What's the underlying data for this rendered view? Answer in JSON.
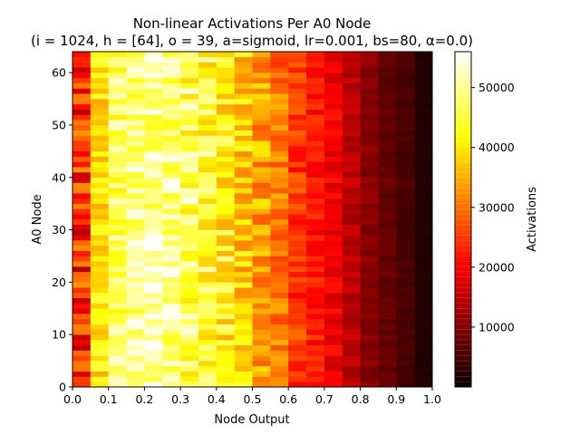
{
  "chart_data": {
    "type": "heatmap",
    "title": "Non-linear Activations Per A0 Node",
    "subtitle": "(i = 1024, h = [64], o = 39, a=sigmoid, lr=0.001, bs=80, α=0.0)",
    "xlabel": "Node Output",
    "ylabel": "A0 Node",
    "colorbar_label": "Activations",
    "colormap": "hot",
    "x_bins": [
      0.0,
      0.05,
      0.1,
      0.15,
      0.2,
      0.25,
      0.3,
      0.35,
      0.4,
      0.45,
      0.5,
      0.55,
      0.6,
      0.65,
      0.7,
      0.75,
      0.8,
      0.85,
      0.9,
      0.95,
      1.0
    ],
    "y_range": [
      0,
      64
    ],
    "xlim": [
      0.0,
      1.0
    ],
    "ylim": [
      0,
      64
    ],
    "x_ticks": [
      "0.0",
      "0.1",
      "0.2",
      "0.3",
      "0.4",
      "0.5",
      "0.6",
      "0.7",
      "0.8",
      "0.9",
      "1.0"
    ],
    "y_ticks": [
      "0",
      "10",
      "20",
      "30",
      "40",
      "50",
      "60"
    ],
    "colorbar_range": [
      0,
      56000
    ],
    "colorbar_ticks": [
      "10000",
      "20000",
      "30000",
      "40000",
      "50000"
    ],
    "column_profile_approx": [
      24000,
      40000,
      47000,
      49000,
      50000,
      49000,
      47000,
      45000,
      42000,
      38000,
      34000,
      30000,
      25000,
      22000,
      19000,
      14000,
      10000,
      7000,
      5000,
      2000
    ],
    "value_range_approx": [
      0,
      56000
    ]
  }
}
